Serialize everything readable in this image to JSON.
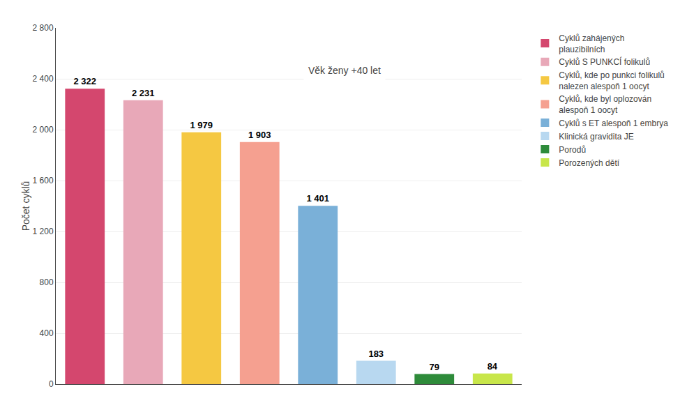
{
  "chart_data": {
    "type": "bar",
    "categories": [
      "Cyklů zahájených\nplauzibilních",
      "Cyklů S PUNKCÍ folikulů",
      "Cyklů, kde po punkci folikulů\nnalezen alespoň 1 oocyt",
      "Cyklů, kde byl oplozován\nalespoň 1 oocyt",
      "Cyklů s ET alespoň 1 embrya",
      "Klinická gravidita JE",
      "Porodů",
      "Porozených dětí"
    ],
    "values": [
      2322,
      2231,
      1979,
      1903,
      1401,
      183,
      79,
      84
    ],
    "value_labels": [
      "2 322",
      "2 231",
      "1 979",
      "1 903",
      "1 401",
      "183",
      "79",
      "84"
    ],
    "colors": [
      "#d4476e",
      "#e8a8b8",
      "#f5c842",
      "#f5a090",
      "#7ab0d8",
      "#b8d8f0",
      "#2e8b3a",
      "#c8e64a"
    ],
    "ylabel": "Počet cyklů",
    "annotation": "Věk ženy +40 let",
    "ylim": [
      0,
      2800
    ],
    "yticks": [
      0,
      400,
      800,
      {
        "value": 1200,
        "label": "1 200"
      },
      {
        "value": 1600,
        "label": "1 600"
      },
      {
        "value": 2000,
        "label": "2 000"
      },
      {
        "value": 2400,
        "label": "2 400"
      },
      {
        "value": 2800,
        "label": "2 800"
      }
    ],
    "grid": true,
    "legend": "right",
    "data_labels": true,
    "tick_labels": "y"
  }
}
